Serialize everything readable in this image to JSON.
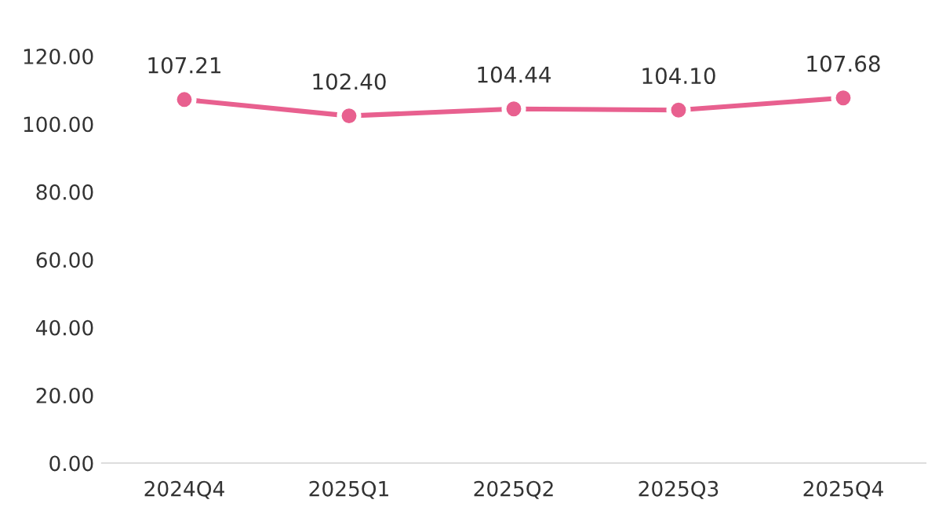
{
  "chart_data": {
    "type": "line",
    "categories": [
      "2024Q4",
      "2025Q1",
      "2025Q2",
      "2025Q3",
      "2025Q4"
    ],
    "series": [
      {
        "color": "#e8608f",
        "values": [
          107.21,
          102.4,
          104.44,
          104.1,
          107.68
        ],
        "value_labels": [
          "107.21",
          "102.40",
          "104.44",
          "104.10",
          "107.68"
        ]
      }
    ],
    "ylim": [
      0,
      120
    ],
    "yticks": [
      {
        "value": 0,
        "label": "0.00"
      },
      {
        "value": 20,
        "label": "20.00"
      },
      {
        "value": 40,
        "label": "40.00"
      },
      {
        "value": 60,
        "label": "60.00"
      },
      {
        "value": 80,
        "label": "80.00"
      },
      {
        "value": 100,
        "label": "100.00"
      },
      {
        "value": 120,
        "label": "120.00"
      }
    ],
    "grid": false,
    "legend": false,
    "marker": "circle",
    "line_style": "solid"
  }
}
